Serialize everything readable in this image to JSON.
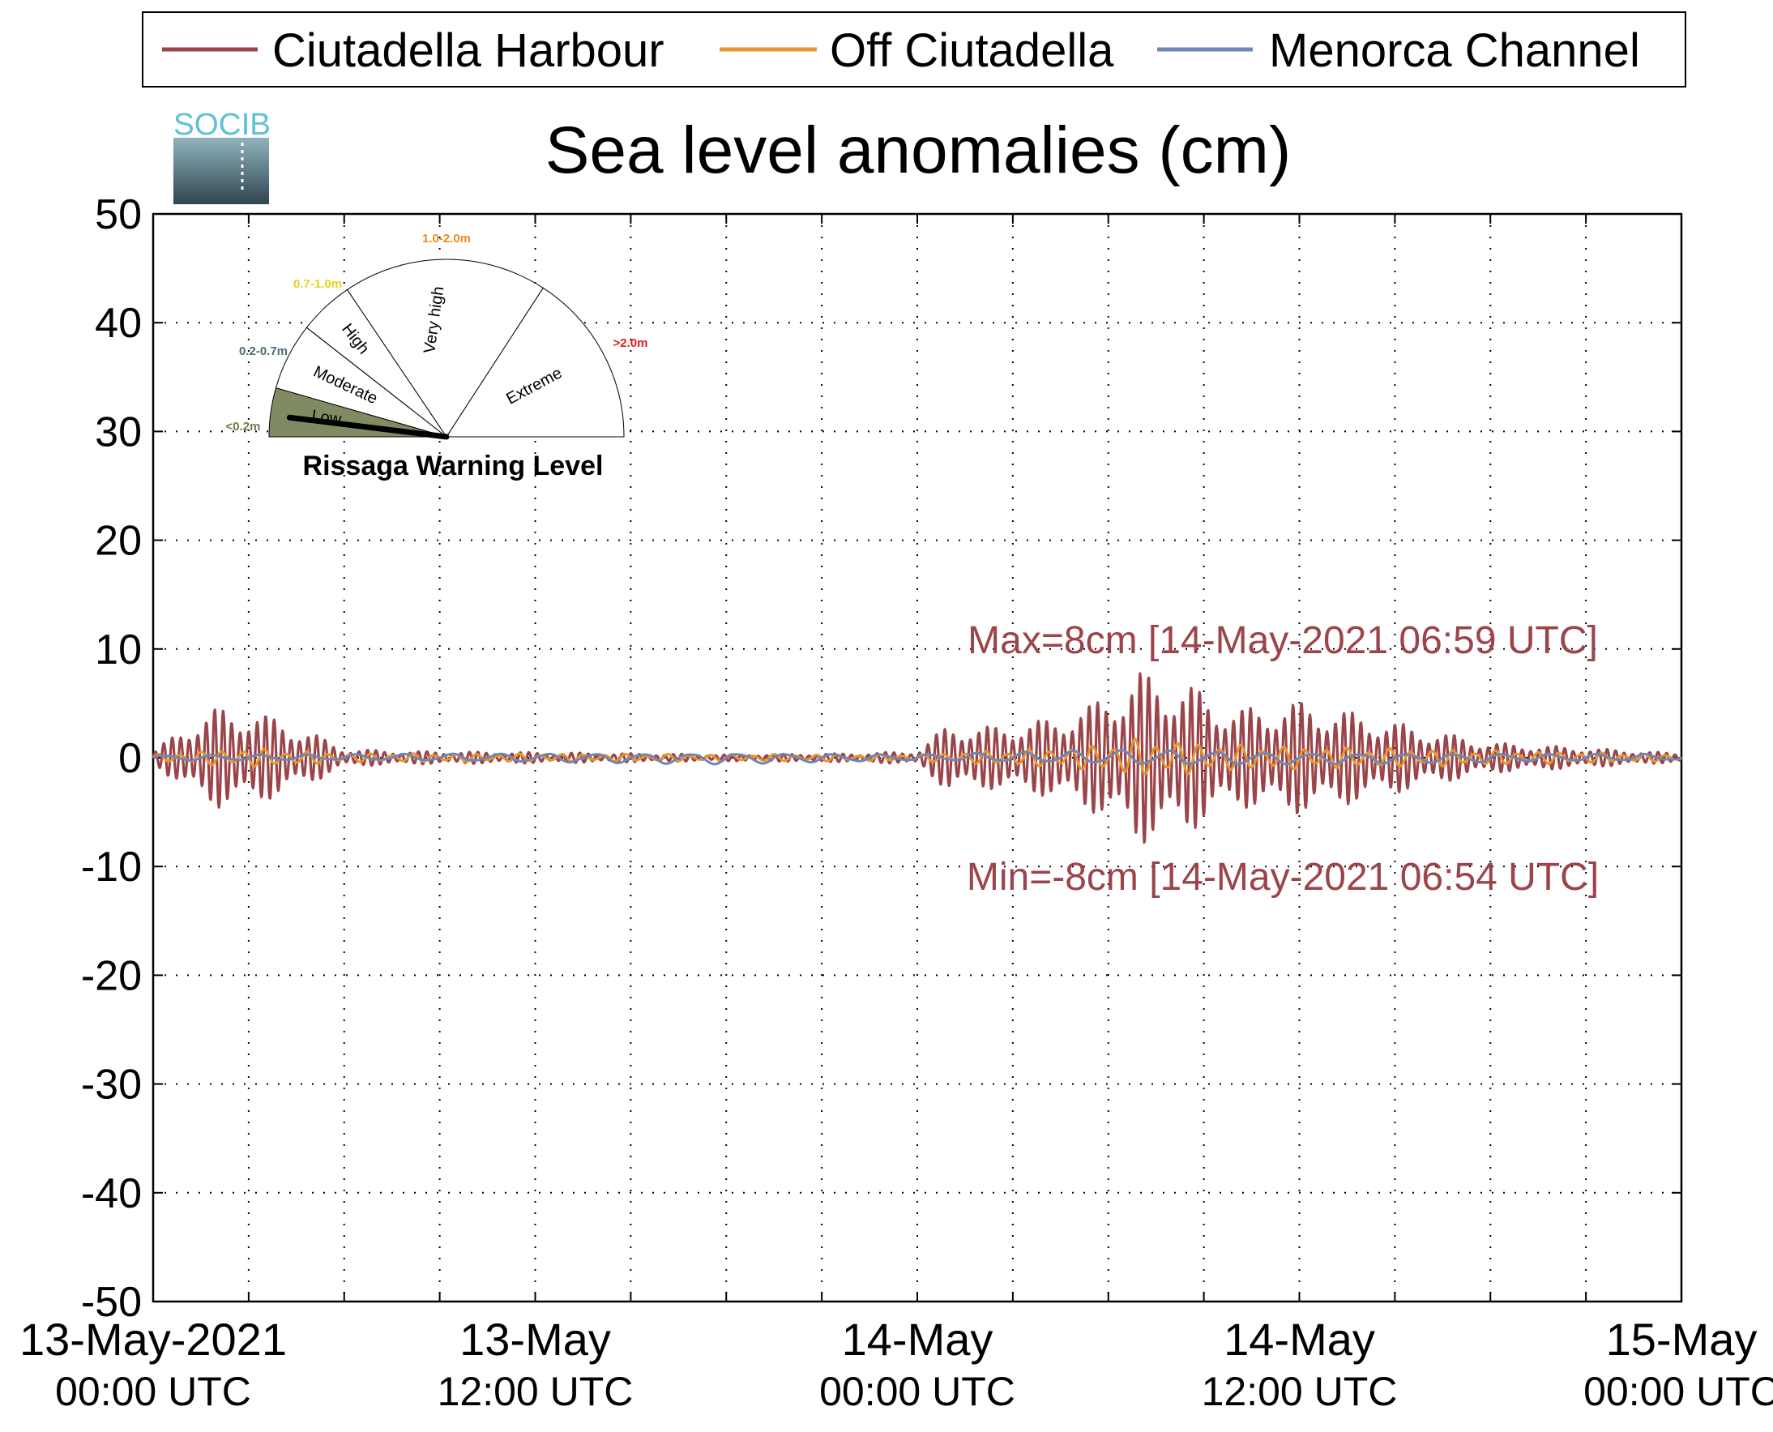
{
  "logo": {
    "text": "SOCIB"
  },
  "chart_data": {
    "type": "line",
    "title": "Sea level anomalies (cm)",
    "ylabel": "",
    "xlabel": "",
    "ylim": [
      -50,
      50
    ],
    "yticks": [
      "50",
      "40",
      "30",
      "20",
      "10",
      "0",
      "-10",
      "-20",
      "-30",
      "-40",
      "-50"
    ],
    "xlim": [
      "2021-05-13 00:00",
      "2021-05-15 00:00"
    ],
    "xticks": [
      {
        "date": "13-May-2021",
        "time": "00:00 UTC"
      },
      {
        "date": "13-May",
        "time": "12:00 UTC"
      },
      {
        "date": "14-May",
        "time": "00:00 UTC"
      },
      {
        "date": "14-May",
        "time": "12:00 UTC"
      },
      {
        "date": "15-May",
        "time": "00:00 UTC"
      }
    ],
    "grid": true,
    "legend_position": "top",
    "series": [
      {
        "name": "Ciutadella Harbour",
        "color": "#9b4449",
        "envelope": {
          "x": [
            "2021-05-13 00:00",
            "2021-05-13 01:00",
            "2021-05-13 02:00",
            "2021-05-13 03:00",
            "2021-05-13 04:00",
            "2021-05-13 05:00",
            "2021-05-13 06:00",
            "2021-05-13 08:00",
            "2021-05-13 12:00",
            "2021-05-13 18:00",
            "2021-05-13 22:00",
            "2021-05-14 00:00",
            "2021-05-14 01:00",
            "2021-05-14 02:00",
            "2021-05-14 04:00",
            "2021-05-14 05:30",
            "2021-05-14 07:00",
            "2021-05-14 08:30",
            "2021-05-14 10:00",
            "2021-05-14 12:00",
            "2021-05-14 14:00",
            "2021-05-14 16:00",
            "2021-05-14 18:00",
            "2021-05-14 21:00",
            "2021-05-15 00:00"
          ],
          "amplitude": [
            0.5,
            3.0,
            4.6,
            4.4,
            3.5,
            2.3,
            0.8,
            0.6,
            0.5,
            0.3,
            0.4,
            0.6,
            3.2,
            2.8,
            3.5,
            5.0,
            8.0,
            6.8,
            4.5,
            5.2,
            4.0,
            2.6,
            1.4,
            0.9,
            0.4
          ]
        }
      },
      {
        "name": "Off Ciutadella",
        "color": "#e8962c",
        "envelope": {
          "x": [
            "2021-05-13 00:00",
            "2021-05-13 03:00",
            "2021-05-13 06:00",
            "2021-05-14 00:00",
            "2021-05-14 05:00",
            "2021-05-14 07:00",
            "2021-05-14 10:00",
            "2021-05-14 16:00",
            "2021-05-15 00:00"
          ],
          "amplitude": [
            0.3,
            0.9,
            0.4,
            0.3,
            1.0,
            1.8,
            1.2,
            0.8,
            0.3
          ]
        }
      },
      {
        "name": "Menorca Channel",
        "color": "#6f86b6",
        "envelope": {
          "x": [
            "2021-05-13 00:00",
            "2021-05-13 06:00",
            "2021-05-13 18:00",
            "2021-05-14 00:00",
            "2021-05-14 07:00",
            "2021-05-14 12:00",
            "2021-05-15 00:00"
          ],
          "amplitude": [
            0.3,
            0.3,
            0.6,
            0.3,
            0.8,
            0.6,
            0.3
          ]
        }
      }
    ],
    "annotations": {
      "max": "Max=8cm [14-May-2021 06:59 UTC]",
      "min": "Min=-8cm [14-May-2021 06:54 UTC]"
    }
  },
  "gauge": {
    "title": "Rissaga Warning Level",
    "current_level": "Low",
    "sectors": [
      {
        "label": "Low",
        "range": "<0.2m",
        "range_color": "#6f7a47",
        "fill": "#818b63"
      },
      {
        "label": "Moderate",
        "range": "0.2-0.7m",
        "range_color": "#4d6b73",
        "fill": "#ffffff"
      },
      {
        "label": "High",
        "range": "0.7-1.0m",
        "range_color": "#e5d21c",
        "fill": "#ffffff"
      },
      {
        "label": "Very high",
        "range": "1.0-2.0m",
        "range_color": "#ef8a1c",
        "fill": "#ffffff"
      },
      {
        "label": "Extreme",
        "range": ">2.0m",
        "range_color": "#e41a1c",
        "fill": "#ffffff"
      }
    ]
  }
}
